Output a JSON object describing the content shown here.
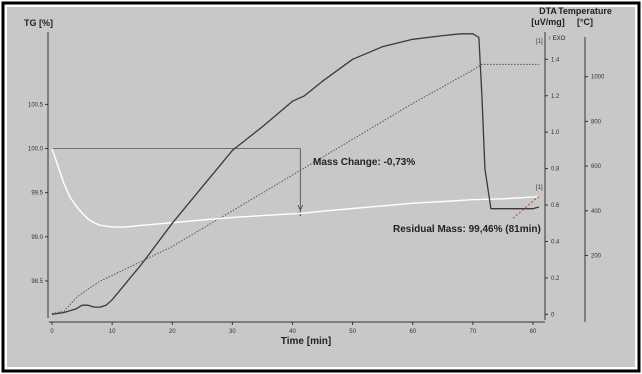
{
  "colors": {
    "frame": "#000000",
    "background": "#c8c8c8",
    "dta_curve": "#3a3a3a",
    "tg_curve": "#ffffff",
    "temperature_curve": "#555555",
    "residual_marker": "#e03a2a",
    "axis": "#333333"
  },
  "chart_data": {
    "type": "line",
    "xlabel": "Time [min]",
    "xlim": [
      0,
      82
    ],
    "xticks": [
      0,
      10,
      20,
      30,
      40,
      50,
      60,
      70,
      80
    ],
    "axes": {
      "tg": {
        "label": "TG [%]",
        "lim": [
          98.08,
          101.32
        ],
        "ticks": [
          98.5,
          99.0,
          99.5,
          100.0,
          100.5
        ],
        "tick_labels": [
          "98.5",
          "99.0",
          "99.5",
          "100.0",
          "100.5"
        ]
      },
      "dta": {
        "label_line1": "DTA",
        "label_line2": "[uV/mg]",
        "lim": [
          -0.02,
          1.55
        ],
        "ticks": [
          0,
          0.2,
          0.4,
          0.6,
          0.8,
          1.0,
          1.2,
          1.4
        ],
        "tick_labels": [
          "0",
          "0.2",
          "0.4",
          "0.6",
          "0.8",
          "1.0",
          "1.2",
          "1.4"
        ],
        "exo_label": "↑ EXO"
      },
      "temperature": {
        "label_line1": "Temperature",
        "label_line2": "[°C]",
        "lim": [
          -80,
          1200
        ],
        "ticks": [
          200,
          400,
          600,
          800,
          1000
        ],
        "tick_labels": [
          "200",
          "400",
          "600",
          "800",
          "1000"
        ]
      }
    },
    "series": [
      {
        "key": "tg",
        "axis": "tg",
        "x": [
          0,
          1,
          2,
          3,
          4,
          5,
          6,
          7,
          8,
          10,
          12,
          15,
          20,
          25,
          30,
          35,
          40,
          42,
          45,
          50,
          55,
          60,
          65,
          70,
          75,
          80,
          81
        ],
        "y": [
          100.0,
          99.8,
          99.6,
          99.45,
          99.35,
          99.27,
          99.2,
          99.16,
          99.13,
          99.11,
          99.11,
          99.13,
          99.16,
          99.19,
          99.22,
          99.24,
          99.26,
          99.27,
          99.29,
          99.32,
          99.35,
          99.38,
          99.4,
          99.42,
          99.43,
          99.45,
          99.46
        ]
      },
      {
        "key": "dta",
        "axis": "dta",
        "x": [
          0,
          2,
          4,
          5,
          6,
          7,
          8,
          9,
          10,
          15,
          20,
          25,
          30,
          35,
          40,
          42,
          45,
          50,
          55,
          60,
          65,
          68,
          70,
          71,
          71.5,
          72,
          73,
          75,
          80,
          81
        ],
        "y": [
          0,
          0.01,
          0.03,
          0.05,
          0.05,
          0.04,
          0.04,
          0.05,
          0.08,
          0.28,
          0.5,
          0.7,
          0.9,
          1.03,
          1.17,
          1.2,
          1.28,
          1.4,
          1.47,
          1.51,
          1.53,
          1.54,
          1.54,
          1.52,
          1.2,
          0.8,
          0.58,
          0.58,
          0.58,
          0.59
        ]
      },
      {
        "key": "temperature",
        "axis": "temperature",
        "x": [
          0,
          2,
          4,
          6,
          8,
          10,
          20,
          30,
          40,
          50,
          60,
          70,
          71.5,
          75,
          80,
          81
        ],
        "y": [
          -60,
          -50,
          10,
          50,
          85,
          110,
          240,
          400,
          560,
          720,
          880,
          1030,
          1055,
          1055,
          1055,
          1055
        ]
      }
    ],
    "annotations": {
      "mass_change": "Mass Change: -0,73%",
      "residual_mass": "Residual Mass: 99,46% (81min)",
      "marker_1": "[1]",
      "marker_2": "[1]"
    }
  }
}
